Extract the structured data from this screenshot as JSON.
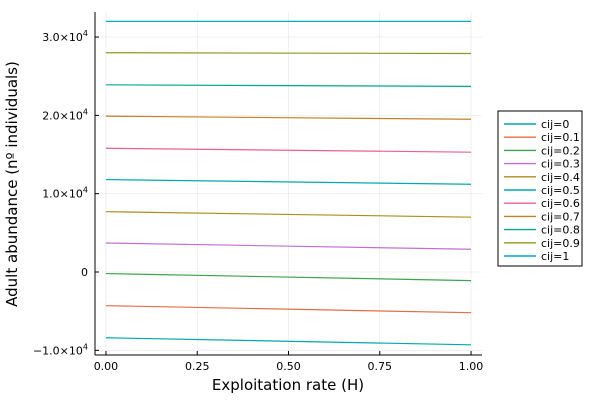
{
  "chart_data": {
    "type": "line",
    "title": "",
    "xlabel": "Exploitation rate (H)",
    "ylabel": "Adult abundance (nº individuals)",
    "xlim": [
      -0.03,
      1.03
    ],
    "ylim": [
      -10600,
      33200
    ],
    "x_ticks": [
      {
        "value": 0,
        "label": "0.00"
      },
      {
        "value": 0.25,
        "label": "0.25"
      },
      {
        "value": 0.5,
        "label": "0.50"
      },
      {
        "value": 0.75,
        "label": "0.75"
      },
      {
        "value": 1,
        "label": "1.00"
      }
    ],
    "y_ticks": [
      {
        "value": -10000,
        "mantissa": "−1.0×10",
        "exp": "4"
      },
      {
        "value": 0,
        "mantissa": "0",
        "exp": ""
      },
      {
        "value": 10000,
        "mantissa": "1.0×10",
        "exp": "4"
      },
      {
        "value": 20000,
        "mantissa": "2.0×10",
        "exp": "4"
      },
      {
        "value": 30000,
        "mantissa": "3.0×10",
        "exp": "4"
      }
    ],
    "grid": true,
    "legend_position": "right",
    "series": [
      {
        "name": "cij=0",
        "color": "#00a9ad",
        "x": [
          0,
          1
        ],
        "y": [
          -8400,
          -9300
        ]
      },
      {
        "name": "cij=0.1",
        "color": "#e26f46",
        "x": [
          0,
          1
        ],
        "y": [
          -4300,
          -5200
        ]
      },
      {
        "name": "cij=0.2",
        "color": "#3da44d",
        "x": [
          0,
          1
        ],
        "y": [
          -200,
          -1100
        ]
      },
      {
        "name": "cij=0.3",
        "color": "#c271d2",
        "x": [
          0,
          1
        ],
        "y": [
          3700,
          2900
        ]
      },
      {
        "name": "cij=0.4",
        "color": "#ac8e18",
        "x": [
          0,
          1
        ],
        "y": [
          7700,
          7000
        ]
      },
      {
        "name": "cij=0.5",
        "color": "#00aaae",
        "x": [
          0,
          1
        ],
        "y": [
          11800,
          11200
        ]
      },
      {
        "name": "cij=0.6",
        "color": "#ed5e93",
        "x": [
          0,
          1
        ],
        "y": [
          15800,
          15300
        ]
      },
      {
        "name": "cij=0.7",
        "color": "#c68125",
        "x": [
          0,
          1
        ],
        "y": [
          19900,
          19500
        ]
      },
      {
        "name": "cij=0.8",
        "color": "#00a98d",
        "x": [
          0,
          1
        ],
        "y": [
          23900,
          23700
        ]
      },
      {
        "name": "cij=0.9",
        "color": "#8e971e",
        "x": [
          0,
          1
        ],
        "y": [
          28000,
          27900
        ]
      },
      {
        "name": "cij=1",
        "color": "#00a8cb",
        "x": [
          0,
          1
        ],
        "y": [
          32000,
          32000
        ]
      }
    ]
  }
}
